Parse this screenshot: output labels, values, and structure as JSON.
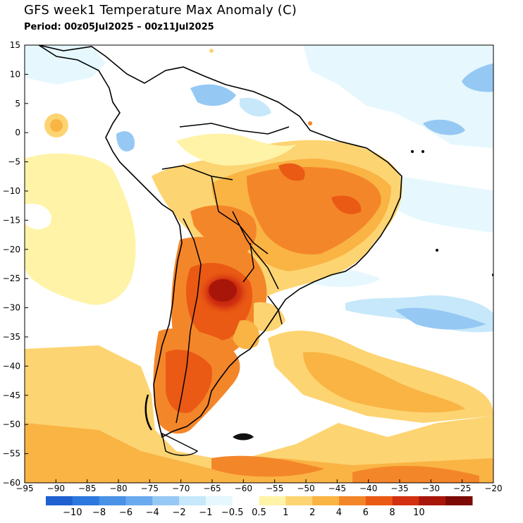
{
  "title": "GFS week1 Temperature Max Anomaly (C)",
  "subtitle": "Period: 00z05Jul2025 – 00z11Jul2025",
  "map": {
    "x_ticks": [
      -95,
      -90,
      -85,
      -80,
      -75,
      -70,
      -65,
      -60,
      -55,
      -50,
      -45,
      -40,
      -35,
      -30,
      -25,
      -20
    ],
    "y_ticks": [
      15,
      10,
      5,
      0,
      -5,
      -10,
      -15,
      -20,
      -25,
      -30,
      -35,
      -40,
      -45,
      -50,
      -55,
      -60
    ],
    "lon_range": [
      -95,
      -20
    ],
    "lat_range": [
      -60,
      15
    ]
  },
  "colorbar": {
    "bins": [
      {
        "color": "#1e60d0"
      },
      {
        "color": "#2c78de"
      },
      {
        "color": "#4a92e6"
      },
      {
        "color": "#6aaaee"
      },
      {
        "color": "#96c8f4"
      },
      {
        "color": "#c6e8fa"
      },
      {
        "color": "#e6f8fe"
      },
      {
        "color": "#ffffff"
      },
      {
        "color": "#fff3a8"
      },
      {
        "color": "#fdd472"
      },
      {
        "color": "#f9b444"
      },
      {
        "color": "#f4862a"
      },
      {
        "color": "#ea5a14"
      },
      {
        "color": "#d23010"
      },
      {
        "color": "#a8160a"
      },
      {
        "color": "#7c0a04"
      }
    ],
    "labels": [
      "−10",
      "−8",
      "−6",
      "−4",
      "−2",
      "−1",
      "−0.5",
      "0.5",
      "1",
      "2",
      "4",
      "6",
      "8",
      "10"
    ]
  }
}
